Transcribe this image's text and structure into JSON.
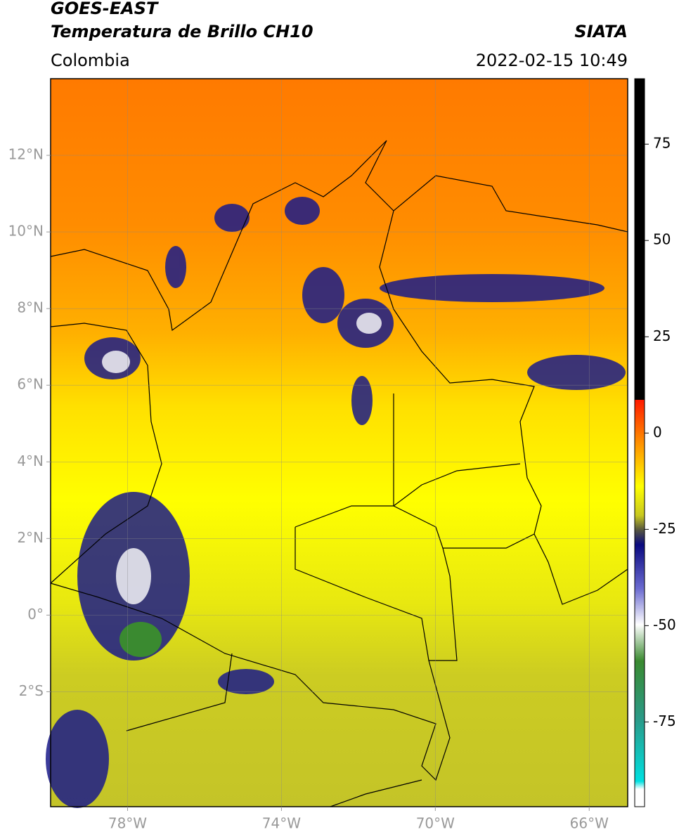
{
  "header": {
    "title": "GOES-EAST",
    "subtitle": "Temperatura de Brillo CH10",
    "source": "SIATA",
    "region": "Colombia",
    "timestamp": "2022-02-15 10:49"
  },
  "map": {
    "xlim": [
      -80,
      -65
    ],
    "ylim": [
      -5,
      14
    ],
    "grid": true,
    "xticks": [
      {
        "value": -78,
        "label": "78°W"
      },
      {
        "value": -74,
        "label": "74°W"
      },
      {
        "value": -70,
        "label": "70°W"
      },
      {
        "value": -66,
        "label": "66°W"
      }
    ],
    "yticks": [
      {
        "value": 12,
        "label": "12°N"
      },
      {
        "value": 10,
        "label": "10°N"
      },
      {
        "value": 8,
        "label": "8°N"
      },
      {
        "value": 6,
        "label": "6°N"
      },
      {
        "value": 4,
        "label": "4°N"
      },
      {
        "value": 2,
        "label": "2°N"
      },
      {
        "value": 0,
        "label": "0°"
      },
      {
        "value": -2,
        "label": "2°S"
      }
    ]
  },
  "colorbar": {
    "lim": [
      -97,
      92
    ],
    "ticks": [
      75,
      50,
      25,
      0,
      -25,
      -50,
      -75
    ]
  }
}
